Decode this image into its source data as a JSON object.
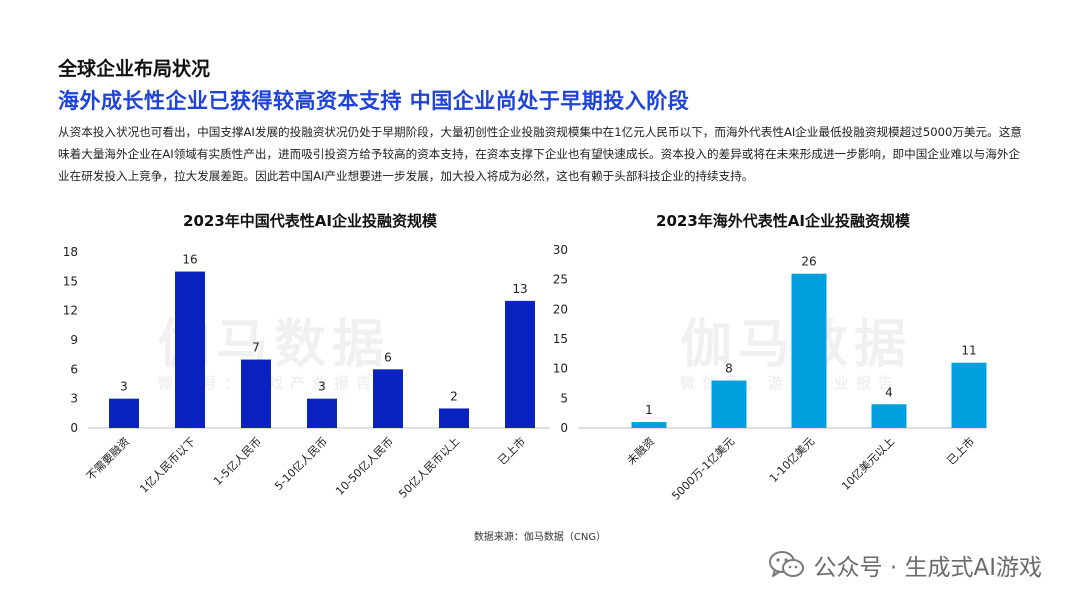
{
  "section_title": "全球企业布局状况",
  "headline": "海外成长性企业已获得较高资本支持  中国企业尚处于早期投入阶段",
  "intro": "从资本投入状况也可看出，中国支撑AI发展的投融资状况仍处于早期阶段，大量初创性企业投融资规模集中在1亿元人民币以下，而海外代表性AI企业最低投融资规模超过5000万美元。这意味着大量海外企业在AI领域有实质性产出，进而吸引投资方给予较高的资本支持，在资本支撑下企业也有望快速成长。资本投入的差异或将在未来形成进一步影响，即中国企业难以与海外企业在研发投入上竞争，拉大发展差距。因此若中国AI产业想要进一步发展，加大投入将成为必然，这也有赖于头部科技企业的持续支持。",
  "watermark": {
    "main": "伽马数据",
    "sub": "微信号：游戏产业报告"
  },
  "source": "数据来源：伽马数据（CNG）",
  "brand": {
    "icon": "wechat-icon",
    "text": "公众号 · 生成式AI游戏"
  },
  "colors": {
    "accent": "#1f43d8",
    "left_bar": "#0a22c0",
    "right_bar": "#00a0de"
  },
  "chart_data": [
    {
      "type": "bar",
      "title": "2023年中国代表性AI企业投融资规模",
      "categories": [
        "不需要融资",
        "1亿人民币以下",
        "1-5亿人民币",
        "5-10亿人民币",
        "10-50亿人民币",
        "50亿人民币以上",
        "已上市"
      ],
      "values": [
        3,
        16,
        7,
        3,
        6,
        2,
        13
      ],
      "ylim": [
        0,
        18
      ],
      "yticks": [
        0,
        3,
        6,
        9,
        12,
        15,
        18
      ],
      "grid": false,
      "color": "#0a22c0"
    },
    {
      "type": "bar",
      "title": "2023年海外代表性AI企业投融资规模",
      "categories": [
        "未融资",
        "5000万-1亿美元",
        "1-10亿美元",
        "10亿美元以上",
        "已上市"
      ],
      "values": [
        1,
        8,
        26,
        4,
        11
      ],
      "ylim": [
        0,
        30
      ],
      "yticks": [
        0,
        5,
        10,
        15,
        20,
        25,
        30
      ],
      "grid": false,
      "color": "#00a0de"
    }
  ]
}
